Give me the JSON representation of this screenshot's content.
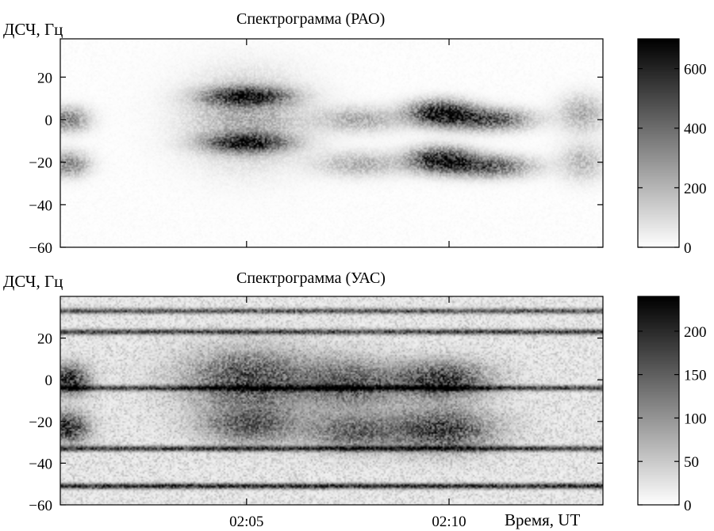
{
  "chart_data": [
    {
      "type": "heatmap",
      "title": "Спектрограмма (РАО)",
      "ylabel": "ДСЧ, Гц",
      "xlabel": "",
      "ylim": [
        -60,
        38
      ],
      "yticks": [
        "20",
        "0",
        "−20",
        "−40",
        "−60"
      ],
      "ytick_values": [
        20,
        0,
        -20,
        -40,
        -60
      ],
      "xtick_labels": [
        "",
        ""
      ],
      "xtick_values": [
        5,
        10
      ],
      "xlim": [
        0.4,
        13.8
      ],
      "colorbar": {
        "ticks": [
          "600",
          "400",
          "200",
          "0"
        ],
        "tick_values": [
          600,
          400,
          200,
          0
        ],
        "range": [
          0,
          700
        ]
      },
      "colormap": {
        "low": "#ffffff",
        "high": "#000000"
      },
      "features": [
        {
          "t": 0.6,
          "f": 0,
          "dt": 0.35,
          "df": 4,
          "v": 330
        },
        {
          "t": 0.6,
          "f": -21,
          "dt": 0.35,
          "df": 4,
          "v": 320
        },
        {
          "t": 5.0,
          "f": 11,
          "dt": 0.7,
          "df": 3,
          "v": 560
        },
        {
          "t": 5.0,
          "f": -11,
          "dt": 0.7,
          "df": 3,
          "v": 520
        },
        {
          "t": 5.0,
          "f": 0,
          "dt": 1.0,
          "df": 14,
          "v": 220
        },
        {
          "t": 7.8,
          "f": 0,
          "dt": 0.7,
          "df": 4,
          "v": 210
        },
        {
          "t": 7.8,
          "f": -21,
          "dt": 0.7,
          "df": 4,
          "v": 200
        },
        {
          "t": 9.8,
          "f": 3,
          "dt": 0.55,
          "df": 4,
          "v": 640
        },
        {
          "t": 9.8,
          "f": -19,
          "dt": 0.55,
          "df": 4,
          "v": 620
        },
        {
          "t": 11.0,
          "f": 0,
          "dt": 0.7,
          "df": 3.5,
          "v": 450
        },
        {
          "t": 11.0,
          "f": -22,
          "dt": 0.7,
          "df": 3.5,
          "v": 430
        },
        {
          "t": 13.3,
          "f": 3,
          "dt": 0.4,
          "df": 6,
          "v": 200
        },
        {
          "t": 13.3,
          "f": -20,
          "dt": 0.4,
          "df": 6,
          "v": 170
        }
      ]
    },
    {
      "type": "heatmap",
      "title": "Спектрограмма (УАС)",
      "ylabel": "ДСЧ, Гц",
      "xlabel": "Время, UT",
      "ylim": [
        -60,
        40
      ],
      "yticks": [
        "20",
        "0",
        "−20",
        "−40",
        "−60"
      ],
      "ytick_values": [
        20,
        0,
        -20,
        -40,
        -60
      ],
      "xtick_labels": [
        "02:05",
        "02:10"
      ],
      "xtick_values": [
        5,
        10
      ],
      "xlim": [
        0.4,
        13.8
      ],
      "colorbar": {
        "ticks": [
          "200",
          "150",
          "100",
          "50",
          "0"
        ],
        "tick_values": [
          200,
          150,
          100,
          50,
          0
        ],
        "range": [
          0,
          240
        ]
      },
      "colormap": {
        "low": "#ffffff",
        "high": "#000000"
      },
      "lines": [
        {
          "f": 33,
          "v": 150
        },
        {
          "f": 23,
          "v": 170
        },
        {
          "f": -4,
          "v": 170
        },
        {
          "f": -33,
          "v": 180
        },
        {
          "f": -51,
          "v": 200
        }
      ],
      "features": [
        {
          "t": 0.6,
          "f": 0,
          "dt": 0.35,
          "df": 5,
          "v": 170
        },
        {
          "t": 0.6,
          "f": -23,
          "dt": 0.35,
          "df": 5,
          "v": 170
        },
        {
          "t": 5.1,
          "f": 0,
          "dt": 1.1,
          "df": 10,
          "v": 140
        },
        {
          "t": 5.1,
          "f": -22,
          "dt": 0.8,
          "df": 6,
          "v": 120
        },
        {
          "t": 7.6,
          "f": -2,
          "dt": 0.8,
          "df": 8,
          "v": 120
        },
        {
          "t": 7.6,
          "f": -25,
          "dt": 0.8,
          "df": 6,
          "v": 110
        },
        {
          "t": 9.8,
          "f": 0,
          "dt": 0.8,
          "df": 6,
          "v": 160
        },
        {
          "t": 9.8,
          "f": -24,
          "dt": 0.9,
          "df": 7,
          "v": 150
        }
      ]
    }
  ]
}
